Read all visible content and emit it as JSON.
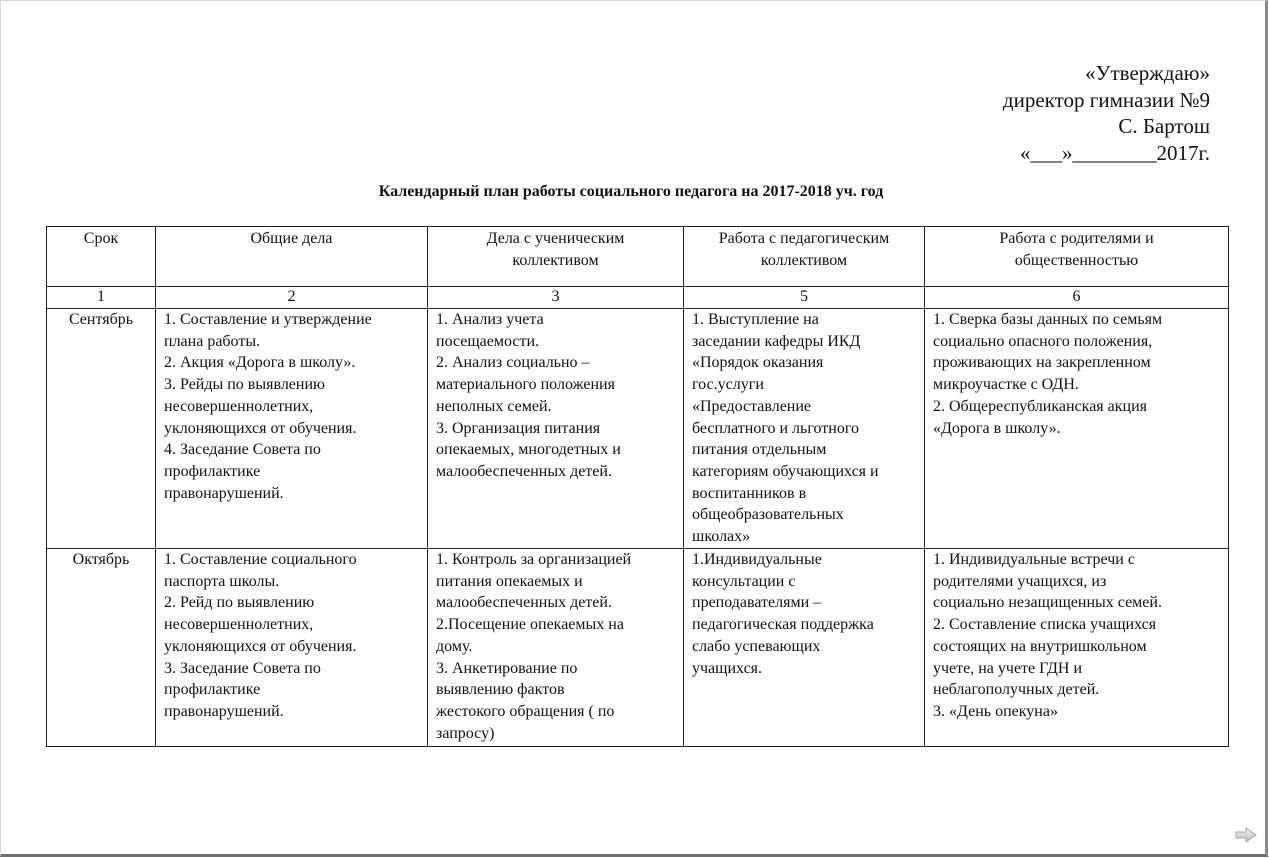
{
  "approval": {
    "lines": [
      "«Утверждаю»",
      "директор гимназии №9",
      "С. Бартош",
      "«___»________2017г."
    ]
  },
  "document_title": "Календарный план работы социального педагога на 2017-2018 уч. год",
  "table": {
    "headers": [
      [
        "Срок"
      ],
      [
        "Общие дела"
      ],
      [
        "Дела с ученическим",
        "коллективом"
      ],
      [
        "Работа с педагогическим",
        "коллективом"
      ],
      [
        "Работа с родителями и",
        "общественностью"
      ]
    ],
    "column_numbers": [
      "1",
      "2",
      "3",
      "5",
      "6"
    ],
    "rows": [
      {
        "period": "Сентябрь",
        "cells": [
          [
            "1. Составление и утверждение",
            "плана работы.",
            "2. Акция «Дорога в школу».",
            "3. Рейды по выявлению",
            "несовершеннолетних,",
            "уклоняющихся от обучения.",
            "4. Заседание Совета по",
            "профилактике",
            "правонарушений."
          ],
          [
            "1. Анализ учета",
            "посещаемости.",
            "2. Анализ социально –",
            "материального положения",
            "неполных семей.",
            "3. Организация питания",
            "опекаемых, многодетных  и",
            "малообеспеченных детей."
          ],
          [
            "1. Выступление на",
            "заседании кафедры ИКД",
            "«Порядок оказания",
            "гос.услуги",
            "«Предоставление",
            "бесплатного и льготного",
            "питания отдельным",
            "категориям обучающихся и",
            "воспитанников в",
            "общеобразовательных",
            "школах»"
          ],
          [
            "1. Сверка базы данных по семьям",
            "социально опасного положения,",
            "проживающих на закрепленном",
            "микроучастке с ОДН.",
            "2. Общереспубликанская акция",
            "«Дорога в школу»."
          ]
        ]
      },
      {
        "period": "Октябрь",
        "cells": [
          [
            "1. Составление социального",
            "паспорта школы.",
            "2. Рейд по выявлению",
            "несовершеннолетних,",
            "уклоняющихся от обучения.",
            "3. Заседание Совета по",
            "профилактике",
            "правонарушений."
          ],
          [
            "1. Контроль за организацией",
            "питания опекаемых и",
            "малообеспеченных детей.",
            "2.Посещение опекаемых на",
            "дому.",
            "3. Анкетирование по",
            "выявлению фактов",
            "жестокого обращения ( по",
            "запросу)"
          ],
          [
            "1.Индивидуальные",
            "консультации с",
            "преподавателями –",
            "педагогическая поддержка",
            "слабо успевающих",
            "учащихся."
          ],
          [
            "1. Индивидуальные встречи с",
            "родителями учащихся, из",
            "социально незащищенных семей.",
            "2. Составление списка учащихся",
            "состоящих на внутришкольном",
            "учете, на учете ГДН и",
            "неблагополучных детей.",
            "3. «День опекуна»"
          ]
        ]
      }
    ]
  },
  "icons": {
    "next_page": "arrow-right-icon"
  }
}
